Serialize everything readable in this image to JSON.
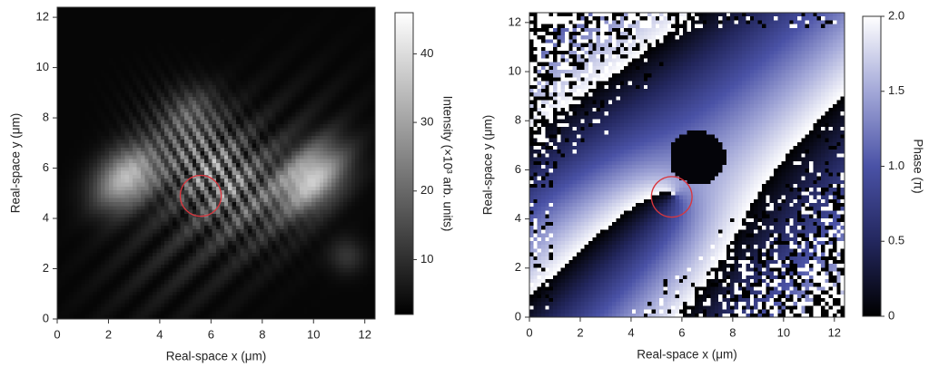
{
  "chart_data": [
    {
      "type": "heatmap",
      "xlabel": "Real-space x (μm)",
      "ylabel": "Real-space y (μm)",
      "xlim": [
        0,
        12.4
      ],
      "ylim": [
        0,
        12.4
      ],
      "xticks": [
        0,
        2,
        4,
        6,
        8,
        10,
        12
      ],
      "yticks": [
        0,
        2,
        4,
        6,
        8,
        10,
        12
      ],
      "colorbar": {
        "label": "Intensity (×10³ arb. units)",
        "lim": [
          2,
          46
        ],
        "ticks": [
          10,
          20,
          30,
          40
        ],
        "colormap": [
          "#000000",
          "#ffffff"
        ]
      },
      "circle": {
        "x": 5.6,
        "y": 4.9,
        "radius": 0.8,
        "color": "#d9363e"
      }
    },
    {
      "type": "heatmap",
      "xlabel": "Real-space x (μm)",
      "ylabel": "Real-space y (μm)",
      "xlim": [
        0,
        12.4
      ],
      "ylim": [
        0,
        12.4
      ],
      "xticks": [
        0,
        2,
        4,
        6,
        8,
        10,
        12
      ],
      "yticks": [
        0,
        2,
        4,
        6,
        8,
        10,
        12
      ],
      "colorbar": {
        "label": "Phase (π)",
        "lim": [
          0,
          2
        ],
        "ticks": [
          0,
          0.5,
          {
            "value": 1,
            "label": "1.0"
          },
          1.5,
          {
            "value": 2,
            "label": "2.0"
          }
        ],
        "colormap": [
          "#000000",
          "#23275e",
          "#4a52a6",
          "#a3a8d8",
          "#ffffff"
        ]
      },
      "circle": {
        "x": 5.6,
        "y": 4.9,
        "radius": 0.8,
        "color": "#d9363e"
      }
    }
  ]
}
